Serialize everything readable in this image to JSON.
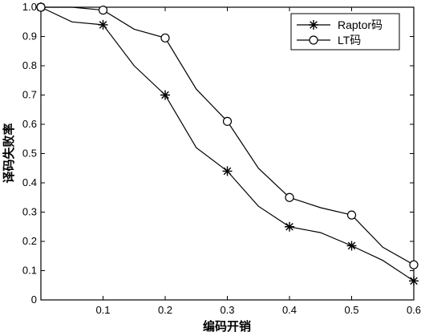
{
  "chart_data": {
    "type": "line",
    "xlabel": "编码开销",
    "ylabel": "译码失败率",
    "xlim": [
      0,
      0.6
    ],
    "ylim": [
      0,
      1.0
    ],
    "xticks": [
      "0.1",
      "0.2",
      "0.3",
      "0.4",
      "0.5",
      "0.6"
    ],
    "yticks": [
      "0",
      "0.1",
      "0.2",
      "0.3",
      "0.4",
      "0.5",
      "0.6",
      "0.7",
      "0.8",
      "0.9",
      "1.0"
    ],
    "grid": false,
    "legend_position": "top-right",
    "series": [
      {
        "name": "Raptor码",
        "marker": "asterisk",
        "line": [
          [
            0.0,
            1.0
          ],
          [
            0.05,
            0.95
          ],
          [
            0.1,
            0.94
          ],
          [
            0.15,
            0.8
          ],
          [
            0.2,
            0.7
          ],
          [
            0.25,
            0.52
          ],
          [
            0.3,
            0.44
          ],
          [
            0.35,
            0.32
          ],
          [
            0.4,
            0.25
          ],
          [
            0.45,
            0.23
          ],
          [
            0.5,
            0.185
          ],
          [
            0.55,
            0.135
          ],
          [
            0.6,
            0.065
          ]
        ],
        "markers": [
          [
            0.0,
            1.0
          ],
          [
            0.1,
            0.94
          ],
          [
            0.2,
            0.7
          ],
          [
            0.3,
            0.44
          ],
          [
            0.4,
            0.25
          ],
          [
            0.5,
            0.185
          ],
          [
            0.6,
            0.065
          ]
        ]
      },
      {
        "name": "LT码",
        "marker": "circle",
        "line": [
          [
            0.0,
            1.0
          ],
          [
            0.05,
            1.0
          ],
          [
            0.1,
            0.99
          ],
          [
            0.15,
            0.925
          ],
          [
            0.2,
            0.895
          ],
          [
            0.25,
            0.72
          ],
          [
            0.3,
            0.61
          ],
          [
            0.35,
            0.45
          ],
          [
            0.4,
            0.35
          ],
          [
            0.45,
            0.315
          ],
          [
            0.5,
            0.29
          ],
          [
            0.55,
            0.18
          ],
          [
            0.6,
            0.12
          ]
        ],
        "markers": [
          [
            0.0,
            1.0
          ],
          [
            0.1,
            0.99
          ],
          [
            0.2,
            0.895
          ],
          [
            0.3,
            0.61
          ],
          [
            0.4,
            0.35
          ],
          [
            0.5,
            0.29
          ],
          [
            0.6,
            0.12
          ]
        ]
      }
    ]
  }
}
